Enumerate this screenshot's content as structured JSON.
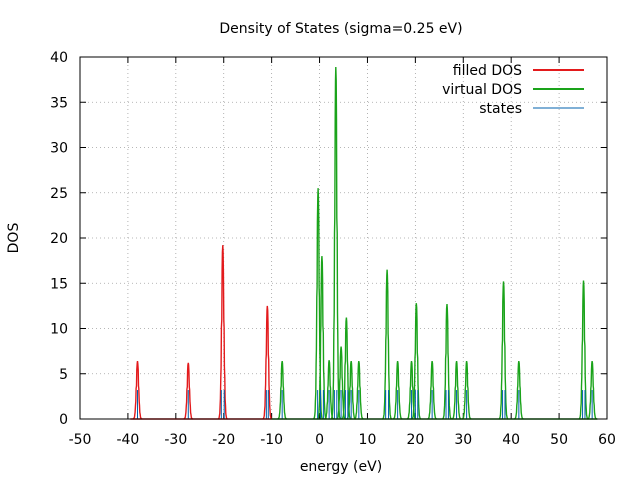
{
  "chart_data": {
    "type": "line",
    "title": "Density of States (sigma=0.25 eV)",
    "xlabel": "energy (eV)",
    "ylabel": "DOS",
    "xlim": [
      -50,
      60
    ],
    "ylim": [
      0,
      40
    ],
    "x_ticks": [
      "-50",
      "-40",
      "-30",
      "-20",
      "-10",
      "0",
      "10",
      "20",
      "30",
      "40",
      "50",
      "60"
    ],
    "y_ticks": [
      "0",
      "5",
      "10",
      "15",
      "20",
      "25",
      "30",
      "35",
      "40"
    ],
    "grid": true,
    "legend_position": "top-right",
    "series": [
      {
        "name": "filled DOS",
        "color": "#e31a1c",
        "kind": "peaks",
        "peaks": [
          {
            "x": -38.0,
            "y": 6.4
          },
          {
            "x": -27.4,
            "y": 6.2
          },
          {
            "x": -20.2,
            "y": 19.2
          },
          {
            "x": -10.9,
            "y": 12.5
          }
        ]
      },
      {
        "name": "virtual DOS",
        "color": "#1aa31a",
        "kind": "peaks",
        "peaks": [
          {
            "x": -7.8,
            "y": 6.4
          },
          {
            "x": -0.3,
            "y": 25.5
          },
          {
            "x": 0.5,
            "y": 18.0
          },
          {
            "x": 2.0,
            "y": 6.5
          },
          {
            "x": 3.4,
            "y": 38.9
          },
          {
            "x": 4.5,
            "y": 8.0
          },
          {
            "x": 5.6,
            "y": 11.2
          },
          {
            "x": 6.6,
            "y": 6.4
          },
          {
            "x": 8.2,
            "y": 6.4
          },
          {
            "x": 14.1,
            "y": 16.5
          },
          {
            "x": 16.3,
            "y": 6.4
          },
          {
            "x": 19.2,
            "y": 6.4
          },
          {
            "x": 20.2,
            "y": 12.8
          },
          {
            "x": 23.5,
            "y": 6.4
          },
          {
            "x": 26.6,
            "y": 12.7
          },
          {
            "x": 28.6,
            "y": 6.4
          },
          {
            "x": 30.7,
            "y": 6.4
          },
          {
            "x": 38.4,
            "y": 15.2
          },
          {
            "x": 41.6,
            "y": 6.4
          },
          {
            "x": 55.1,
            "y": 15.3
          },
          {
            "x": 56.9,
            "y": 6.4
          }
        ]
      },
      {
        "name": "states",
        "color": "#0060ad",
        "kind": "sticks",
        "sticks": [
          {
            "x": -38.0,
            "y": 3.2
          },
          {
            "x": -27.4,
            "y": 3.2
          },
          {
            "x": -20.5,
            "y": 3.2
          },
          {
            "x": -19.9,
            "y": 3.2
          },
          {
            "x": -11.1,
            "y": 3.2
          },
          {
            "x": -10.7,
            "y": 3.2
          },
          {
            "x": -7.8,
            "y": 3.2
          },
          {
            "x": -0.4,
            "y": 3.2
          },
          {
            "x": 0.2,
            "y": 3.2
          },
          {
            "x": 0.8,
            "y": 3.2
          },
          {
            "x": 2.0,
            "y": 3.2
          },
          {
            "x": 3.1,
            "y": 3.2
          },
          {
            "x": 3.6,
            "y": 3.2
          },
          {
            "x": 4.5,
            "y": 3.2
          },
          {
            "x": 5.4,
            "y": 3.2
          },
          {
            "x": 5.9,
            "y": 3.2
          },
          {
            "x": 6.6,
            "y": 3.2
          },
          {
            "x": 8.2,
            "y": 3.2
          },
          {
            "x": 13.8,
            "y": 3.2
          },
          {
            "x": 14.4,
            "y": 3.2
          },
          {
            "x": 16.3,
            "y": 3.2
          },
          {
            "x": 19.2,
            "y": 3.2
          },
          {
            "x": 20.0,
            "y": 3.2
          },
          {
            "x": 20.5,
            "y": 3.2
          },
          {
            "x": 23.5,
            "y": 3.2
          },
          {
            "x": 26.4,
            "y": 3.2
          },
          {
            "x": 26.9,
            "y": 3.2
          },
          {
            "x": 28.6,
            "y": 3.2
          },
          {
            "x": 30.7,
            "y": 3.2
          },
          {
            "x": 38.2,
            "y": 3.2
          },
          {
            "x": 38.7,
            "y": 3.2
          },
          {
            "x": 41.6,
            "y": 3.2
          },
          {
            "x": 54.9,
            "y": 3.2
          },
          {
            "x": 55.4,
            "y": 3.2
          },
          {
            "x": 56.9,
            "y": 3.2
          }
        ]
      }
    ]
  }
}
